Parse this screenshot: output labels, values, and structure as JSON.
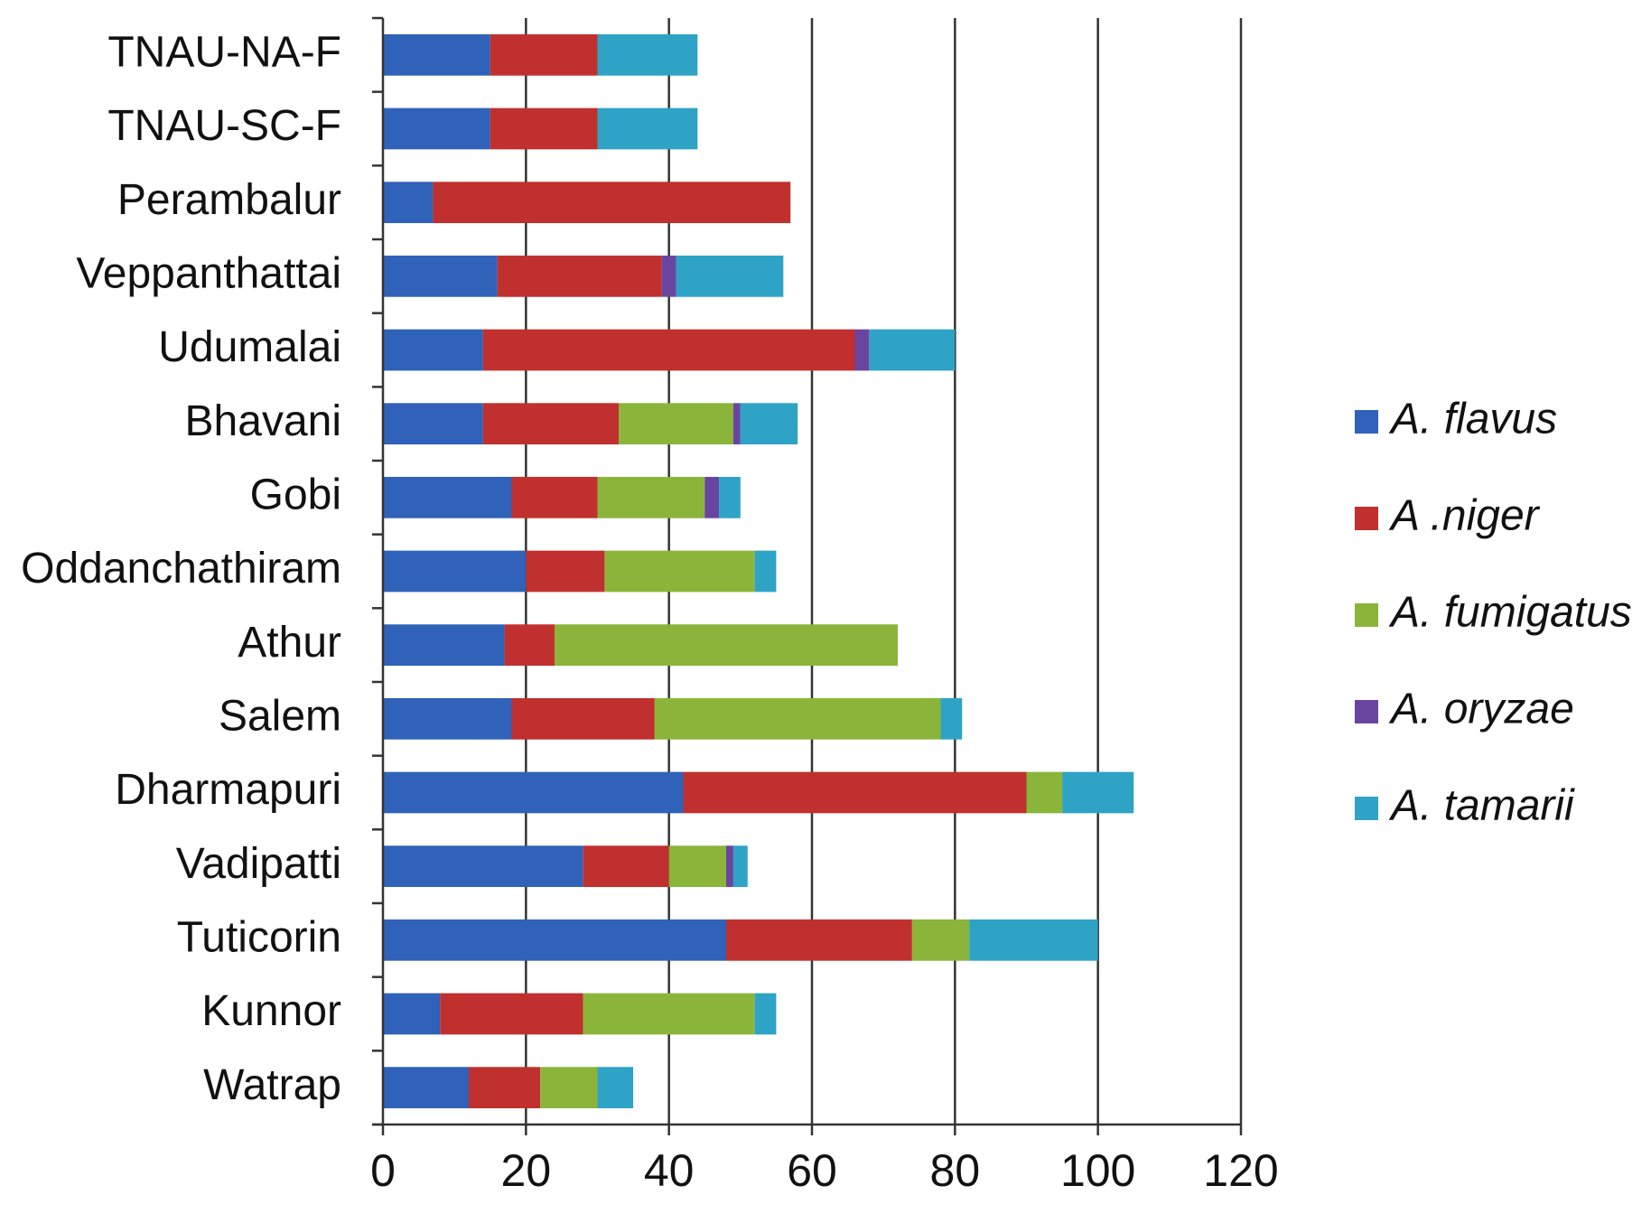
{
  "chart_data": {
    "type": "bar",
    "orientation": "horizontal",
    "stacked": true,
    "categories": [
      "Watrap",
      "Kunnor",
      "Tuticorin",
      "Vadipatti",
      "Dharmapuri",
      "Salem",
      "Athur",
      "Oddanchathiram",
      "Gobi",
      "Bhavani",
      "Udumalai",
      "Veppanthattai",
      "Perambalur",
      "TNAU-SC-F",
      "TNAU-NA-F"
    ],
    "series": [
      {
        "name": "A. flavus",
        "color": "#2f62b8",
        "values": [
          12,
          8,
          48,
          28,
          42,
          18,
          17,
          20,
          18,
          14,
          14,
          16,
          7,
          15,
          15
        ]
      },
      {
        "name": "A .niger",
        "color": "#c0302e",
        "values": [
          10,
          20,
          26,
          12,
          48,
          20,
          7,
          11,
          12,
          19,
          52,
          23,
          50,
          15,
          15
        ]
      },
      {
        "name": "A. fumigatus",
        "color": "#8ab53a",
        "values": [
          8,
          24,
          8,
          8,
          5,
          40,
          48,
          21,
          15,
          16,
          0,
          0,
          0,
          0,
          0
        ]
      },
      {
        "name": "A. oryzae",
        "color": "#6a45a0",
        "values": [
          0,
          0,
          0,
          1,
          0,
          0,
          0,
          0,
          2,
          1,
          2,
          2,
          0,
          0,
          0
        ]
      },
      {
        "name": "A. tamarii",
        "color": "#2ea3c6",
        "values": [
          5,
          3,
          18,
          2,
          10,
          3,
          0,
          3,
          3,
          8,
          12,
          15,
          0,
          14,
          14
        ]
      }
    ],
    "xlim": [
      0,
      120
    ],
    "xticks": [
      0,
      20,
      40,
      60,
      80,
      100,
      120
    ],
    "xlabel": "",
    "ylabel": "",
    "title": "",
    "grid": "vertical",
    "legend": "right"
  }
}
